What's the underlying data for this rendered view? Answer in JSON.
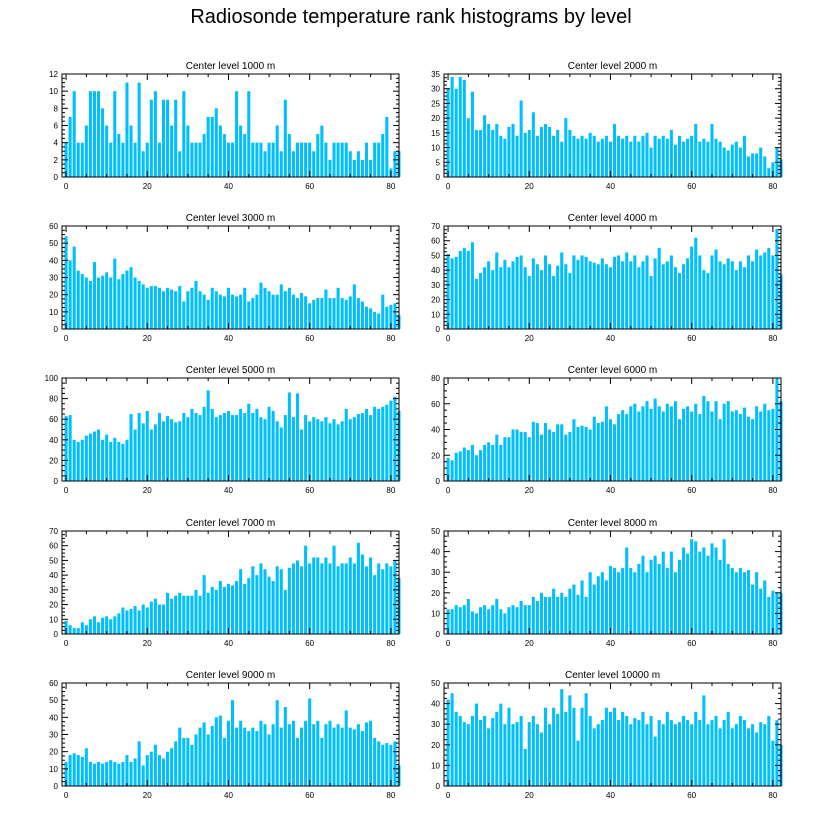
{
  "title": "Radiosonde temperature rank histograms by level",
  "colors": {
    "bar": "#00bfff",
    "axis": "#000000"
  },
  "chart_data": [
    {
      "type": "bar",
      "title": "Center level 1000 m",
      "xticks": [
        0,
        20,
        40,
        60,
        80
      ],
      "yticks": [
        0,
        2,
        4,
        6,
        8,
        10,
        12
      ],
      "ylim": [
        0,
        12
      ],
      "xlim": [
        -1,
        82
      ],
      "values": [
        4,
        7,
        10,
        4,
        4,
        6,
        10,
        10,
        10,
        8,
        6,
        4,
        10,
        5,
        4,
        11,
        6,
        4,
        11,
        3,
        4,
        9,
        10,
        4,
        9,
        9,
        6,
        9,
        3,
        10,
        6,
        4,
        4,
        4,
        5,
        7,
        7,
        8,
        6,
        5,
        4,
        4,
        10,
        6,
        5,
        10,
        4,
        4,
        4,
        3,
        4,
        4,
        6,
        3,
        9,
        5,
        3,
        4,
        4,
        4,
        4,
        3,
        5,
        6,
        4,
        2,
        4,
        4,
        4,
        4,
        3,
        2,
        3,
        2,
        4,
        2,
        4,
        4,
        5,
        7,
        1,
        3,
        3
      ]
    },
    {
      "type": "bar",
      "title": "Center level 2000 m",
      "xticks": [
        0,
        20,
        40,
        60,
        80
      ],
      "yticks": [
        0,
        5,
        10,
        15,
        20,
        25,
        30,
        35
      ],
      "ylim": [
        0,
        35
      ],
      "xlim": [
        -1,
        82
      ],
      "values": [
        30,
        34,
        30,
        34,
        33,
        20,
        29,
        16,
        16,
        21,
        18,
        16,
        18,
        14,
        13,
        17,
        18,
        14,
        26,
        15,
        16,
        22,
        14,
        17,
        18,
        17,
        14,
        16,
        12,
        20,
        16,
        14,
        13,
        14,
        13,
        15,
        14,
        12,
        13,
        14,
        12,
        18,
        14,
        13,
        14,
        12,
        14,
        12,
        14,
        15,
        10,
        14,
        13,
        14,
        13,
        16,
        11,
        14,
        12,
        13,
        14,
        18,
        12,
        13,
        12,
        18,
        13,
        12,
        10,
        9,
        11,
        12,
        10,
        14,
        7,
        8,
        8,
        10,
        7,
        3,
        5,
        10,
        6
      ]
    },
    {
      "type": "bar",
      "title": "Center level 3000 m",
      "xticks": [
        0,
        20,
        40,
        60,
        80
      ],
      "yticks": [
        0,
        10,
        20,
        30,
        40,
        50,
        60
      ],
      "ylim": [
        0,
        60
      ],
      "xlim": [
        -1,
        82
      ],
      "values": [
        54,
        40,
        48,
        34,
        32,
        30,
        28,
        39,
        30,
        31,
        33,
        30,
        41,
        29,
        32,
        34,
        36,
        30,
        28,
        26,
        24,
        25,
        25,
        24,
        22,
        24,
        23,
        22,
        25,
        16,
        22,
        24,
        28,
        22,
        20,
        17,
        24,
        22,
        20,
        19,
        24,
        20,
        19,
        20,
        24,
        16,
        18,
        20,
        27,
        24,
        22,
        20,
        20,
        26,
        22,
        24,
        20,
        18,
        21,
        19,
        15,
        17,
        18,
        18,
        23,
        18,
        18,
        24,
        18,
        17,
        19,
        26,
        18,
        16,
        13,
        12,
        10,
        9,
        20,
        13,
        14,
        15,
        8
      ]
    },
    {
      "type": "bar",
      "title": "Center level 4000 m",
      "xticks": [
        0,
        20,
        40,
        60,
        80
      ],
      "yticks": [
        0,
        10,
        20,
        30,
        40,
        50,
        60,
        70
      ],
      "ylim": [
        0,
        70
      ],
      "xlim": [
        -1,
        82
      ],
      "values": [
        51,
        48,
        49,
        53,
        55,
        53,
        59,
        34,
        38,
        42,
        46,
        40,
        52,
        42,
        47,
        42,
        46,
        49,
        50,
        42,
        36,
        48,
        44,
        40,
        50,
        44,
        36,
        43,
        52,
        44,
        38,
        50,
        47,
        50,
        49,
        46,
        45,
        44,
        48,
        44,
        42,
        49,
        50,
        46,
        52,
        46,
        50,
        42,
        46,
        50,
        36,
        48,
        55,
        44,
        46,
        50,
        42,
        38,
        44,
        48,
        56,
        62,
        50,
        40,
        38,
        50,
        54,
        46,
        44,
        48,
        46,
        40,
        46,
        42,
        50,
        46,
        54,
        50,
        52,
        55,
        50,
        68,
        37
      ]
    },
    {
      "type": "bar",
      "title": "Center level 5000 m",
      "xticks": [
        0,
        20,
        40,
        60,
        80
      ],
      "yticks": [
        0,
        20,
        40,
        60,
        80,
        100
      ],
      "ylim": [
        0,
        100
      ],
      "xlim": [
        -1,
        82
      ],
      "values": [
        63,
        64,
        40,
        38,
        40,
        44,
        46,
        48,
        50,
        40,
        45,
        38,
        42,
        38,
        36,
        40,
        65,
        50,
        66,
        56,
        68,
        50,
        55,
        66,
        58,
        63,
        60,
        57,
        58,
        66,
        62,
        70,
        66,
        64,
        72,
        88,
        70,
        62,
        64,
        66,
        68,
        64,
        64,
        70,
        66,
        75,
        66,
        70,
        62,
        60,
        72,
        68,
        58,
        52,
        64,
        86,
        62,
        85,
        50,
        64,
        58,
        62,
        60,
        58,
        62,
        56,
        60,
        55,
        58,
        70,
        60,
        62,
        65,
        66,
        70,
        64,
        72,
        70,
        72,
        74,
        78,
        82,
        68
      ]
    },
    {
      "type": "bar",
      "title": "Center level 6000 m",
      "xticks": [
        0,
        20,
        40,
        60,
        80
      ],
      "yticks": [
        0,
        20,
        40,
        60,
        80
      ],
      "ylim": [
        0,
        80
      ],
      "xlim": [
        -1,
        82
      ],
      "values": [
        18,
        16,
        22,
        23,
        26,
        24,
        28,
        20,
        24,
        28,
        30,
        28,
        36,
        28,
        34,
        34,
        40,
        40,
        38,
        38,
        34,
        46,
        45,
        36,
        45,
        40,
        38,
        44,
        44,
        36,
        38,
        48,
        42,
        43,
        42,
        40,
        50,
        45,
        46,
        58,
        48,
        44,
        52,
        55,
        52,
        58,
        60,
        54,
        58,
        62,
        56,
        64,
        58,
        54,
        60,
        58,
        62,
        48,
        56,
        58,
        54,
        60,
        52,
        66,
        62,
        54,
        62,
        48,
        60,
        62,
        54,
        55,
        52,
        57,
        50,
        48,
        58,
        54,
        60,
        55,
        56,
        80,
        62
      ]
    },
    {
      "type": "bar",
      "title": "Center level 7000 m",
      "xticks": [
        0,
        20,
        40,
        60,
        80
      ],
      "yticks": [
        0,
        10,
        20,
        30,
        40,
        50,
        60,
        70
      ],
      "ylim": [
        0,
        70
      ],
      "xlim": [
        -1,
        82
      ],
      "values": [
        9,
        6,
        4,
        4,
        8,
        6,
        10,
        12,
        8,
        11,
        12,
        10,
        12,
        14,
        18,
        16,
        17,
        19,
        16,
        20,
        18,
        22,
        24,
        20,
        20,
        28,
        24,
        26,
        28,
        26,
        26,
        26,
        30,
        26,
        40,
        28,
        32,
        30,
        36,
        32,
        34,
        33,
        36,
        44,
        34,
        38,
        46,
        40,
        48,
        44,
        39,
        36,
        46,
        44,
        30,
        45,
        48,
        50,
        46,
        60,
        48,
        52,
        52,
        48,
        52,
        48,
        60,
        46,
        48,
        48,
        52,
        48,
        62,
        54,
        46,
        52,
        40,
        48,
        44,
        48,
        46,
        50,
        38
      ]
    },
    {
      "type": "bar",
      "title": "Center level 8000 m",
      "xticks": [
        0,
        20,
        40,
        60,
        80
      ],
      "yticks": [
        0,
        10,
        20,
        30,
        40,
        50
      ],
      "ylim": [
        0,
        50
      ],
      "xlim": [
        -1,
        82
      ],
      "values": [
        12,
        12,
        14,
        13,
        14,
        17,
        11,
        10,
        13,
        14,
        12,
        14,
        17,
        12,
        10,
        13,
        14,
        13,
        16,
        14,
        14,
        18,
        16,
        20,
        18,
        18,
        22,
        18,
        20,
        18,
        22,
        24,
        19,
        26,
        18,
        30,
        24,
        28,
        30,
        26,
        33,
        32,
        30,
        32,
        42,
        32,
        30,
        34,
        38,
        30,
        36,
        38,
        34,
        40,
        32,
        40,
        30,
        36,
        42,
        39,
        46,
        45,
        40,
        42,
        38,
        44,
        42,
        36,
        46,
        34,
        32,
        30,
        32,
        30,
        31,
        24,
        30,
        22,
        26,
        18,
        21,
        20,
        20
      ]
    },
    {
      "type": "bar",
      "title": "Center level 9000 m",
      "xticks": [
        0,
        20,
        40,
        60,
        80
      ],
      "yticks": [
        0,
        10,
        20,
        30,
        40,
        50,
        60
      ],
      "ylim": [
        0,
        60
      ],
      "xlim": [
        -1,
        82
      ],
      "values": [
        14,
        18,
        19,
        18,
        17,
        22,
        14,
        13,
        14,
        13,
        14,
        15,
        14,
        13,
        14,
        18,
        14,
        16,
        26,
        12,
        18,
        20,
        24,
        18,
        16,
        20,
        22,
        26,
        34,
        28,
        28,
        24,
        30,
        34,
        37,
        30,
        35,
        40,
        41,
        28,
        38,
        50,
        34,
        38,
        34,
        32,
        34,
        32,
        38,
        36,
        30,
        36,
        50,
        34,
        46,
        36,
        38,
        28,
        34,
        38,
        51,
        36,
        38,
        28,
        36,
        38,
        34,
        36,
        34,
        44,
        34,
        33,
        36,
        32,
        37,
        38,
        28,
        26,
        24,
        25,
        24,
        26,
        12
      ]
    },
    {
      "type": "bar",
      "title": "Center level 10000 m",
      "xticks": [
        0,
        20,
        40,
        60,
        80
      ],
      "yticks": [
        0,
        10,
        20,
        30,
        40,
        50
      ],
      "ylim": [
        0,
        50
      ],
      "xlim": [
        -1,
        82
      ],
      "values": [
        42,
        45,
        36,
        34,
        31,
        30,
        34,
        40,
        32,
        34,
        28,
        33,
        36,
        40,
        30,
        38,
        30,
        31,
        34,
        18,
        31,
        34,
        30,
        26,
        38,
        30,
        38,
        35,
        47,
        36,
        44,
        38,
        22,
        38,
        45,
        34,
        28,
        30,
        32,
        38,
        36,
        38,
        32,
        36,
        34,
        30,
        33,
        32,
        36,
        30,
        34,
        24,
        32,
        30,
        36,
        32,
        30,
        31,
        34,
        32,
        30,
        36,
        32,
        44,
        30,
        32,
        34,
        28,
        32,
        36,
        28,
        30,
        34,
        32,
        28,
        30,
        26,
        31,
        30,
        34,
        22,
        32,
        20
      ]
    }
  ]
}
